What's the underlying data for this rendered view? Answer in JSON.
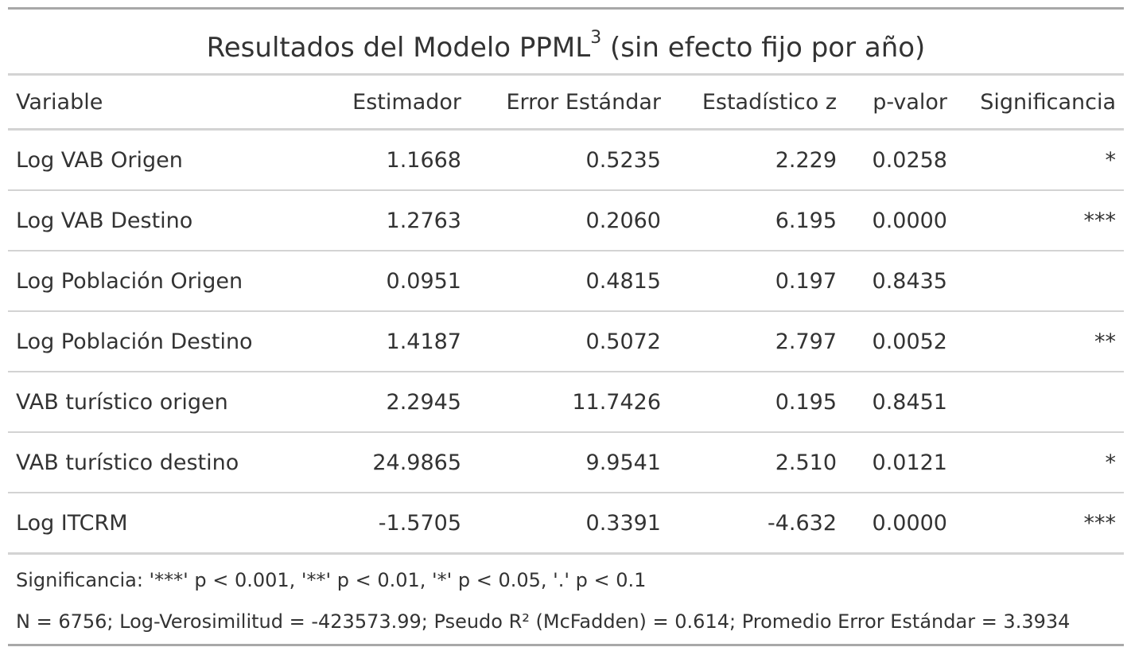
{
  "table": {
    "title_main": "Resultados del Modelo PPML",
    "title_sup": "3",
    "title_suffix": " (sin efecto fijo por año)",
    "headers": [
      "Variable",
      "Estimador",
      "Error Estándar",
      "Estadístico z",
      "p-valor",
      "Significancia"
    ],
    "rows": [
      {
        "variable": "Log VAB Origen",
        "estimador": "1.1668",
        "error": "0.5235",
        "z": "2.229",
        "p": "0.0258",
        "sig": "*"
      },
      {
        "variable": "Log VAB Destino",
        "estimador": "1.2763",
        "error": "0.2060",
        "z": "6.195",
        "p": "0.0000",
        "sig": "***"
      },
      {
        "variable": "Log Población Origen",
        "estimador": "0.0951",
        "error": "0.4815",
        "z": "0.197",
        "p": "0.8435",
        "sig": ""
      },
      {
        "variable": "Log Población Destino",
        "estimador": "1.4187",
        "error": "0.5072",
        "z": "2.797",
        "p": "0.0052",
        "sig": "**"
      },
      {
        "variable": "VAB turístico origen",
        "estimador": "2.2945",
        "error": "11.7426",
        "z": "0.195",
        "p": "0.8451",
        "sig": ""
      },
      {
        "variable": "VAB turístico destino",
        "estimador": "24.9865",
        "error": "9.9541",
        "z": "2.510",
        "p": "0.0121",
        "sig": "*"
      },
      {
        "variable": "Log ITCRM",
        "estimador": "-1.5705",
        "error": "0.3391",
        "z": "-4.632",
        "p": "0.0000",
        "sig": "***"
      }
    ],
    "footnote_significance": "Significancia: '***' p < 0.001, '**' p < 0.01, '*' p < 0.05, '.' p < 0.1",
    "footnote_stats": "N = 6756; Log-Verosimilitud = -423573.99; Pseudo R² (McFadden) = 0.614; Promedio Error Estándar = 3.3934"
  }
}
